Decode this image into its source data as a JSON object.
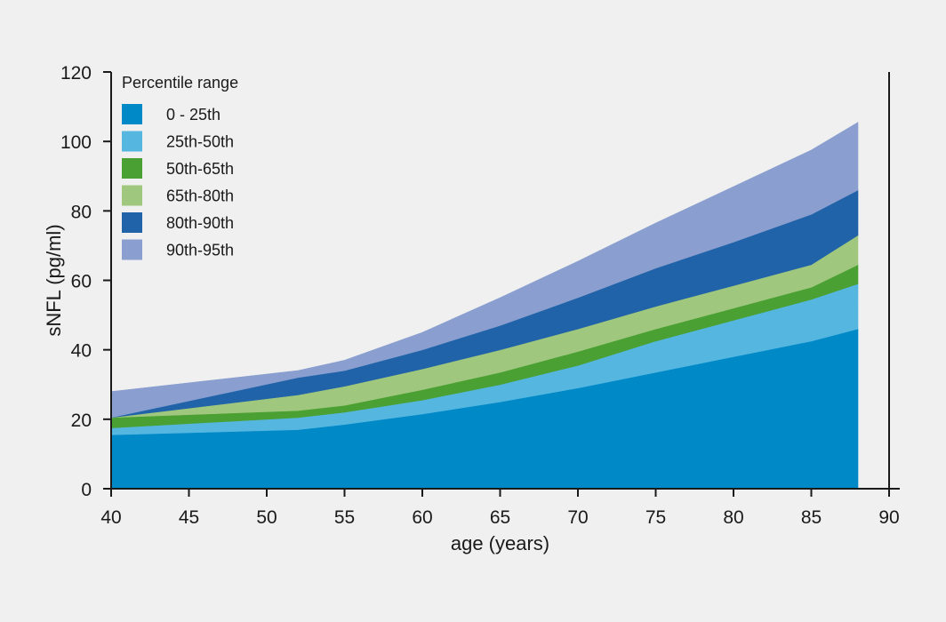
{
  "chart_data": {
    "type": "area",
    "stacked_bands": true,
    "title": "",
    "xlabel": "age (years)",
    "ylabel": "sNFL (pg/ml)",
    "xlim": [
      40,
      90
    ],
    "ylim": [
      0,
      120
    ],
    "xticks": [
      40,
      45,
      50,
      55,
      60,
      65,
      70,
      75,
      80,
      85,
      90
    ],
    "yticks": [
      0,
      20,
      40,
      60,
      80,
      100,
      120
    ],
    "grid": false,
    "legend": {
      "title": "Percentile range",
      "placement": "top-left"
    },
    "x": [
      40,
      52,
      55,
      60,
      65,
      70,
      75,
      80,
      85,
      88
    ],
    "boundaries": [
      {
        "name": "25th",
        "values": [
          15.5,
          17,
          18.5,
          21.5,
          25,
          29,
          33.5,
          38,
          42.5,
          46
        ]
      },
      {
        "name": "50th",
        "values": [
          17.5,
          20.5,
          22,
          25.5,
          30,
          35.5,
          42.5,
          48.5,
          54.5,
          59
        ]
      },
      {
        "name": "65th",
        "values": [
          20.5,
          22.5,
          24,
          28.5,
          33.5,
          39.5,
          46,
          52,
          58,
          64.5
        ]
      },
      {
        "name": "80th",
        "values": [
          20.5,
          27,
          29.5,
          34.5,
          40,
          46,
          52.5,
          58.5,
          64.5,
          73
        ]
      },
      {
        "name": "90th",
        "values": [
          20.5,
          32,
          34,
          40,
          47,
          55,
          63.5,
          71,
          79,
          86
        ]
      },
      {
        "name": "95th",
        "values": [
          28,
          34,
          37,
          45,
          55,
          65.5,
          76.5,
          87,
          97.5,
          105.5
        ]
      }
    ],
    "series": [
      {
        "name": "0 - 25th",
        "color": "#0089c7"
      },
      {
        "name": "25th-50th",
        "color": "#55b6e0"
      },
      {
        "name": "50th-65th",
        "color": "#4aa032"
      },
      {
        "name": "65th-80th",
        "color": "#9fc77e"
      },
      {
        "name": "80th-90th",
        "color": "#2163a8"
      },
      {
        "name": "90th-95th",
        "color": "#8a9fcf"
      }
    ]
  }
}
